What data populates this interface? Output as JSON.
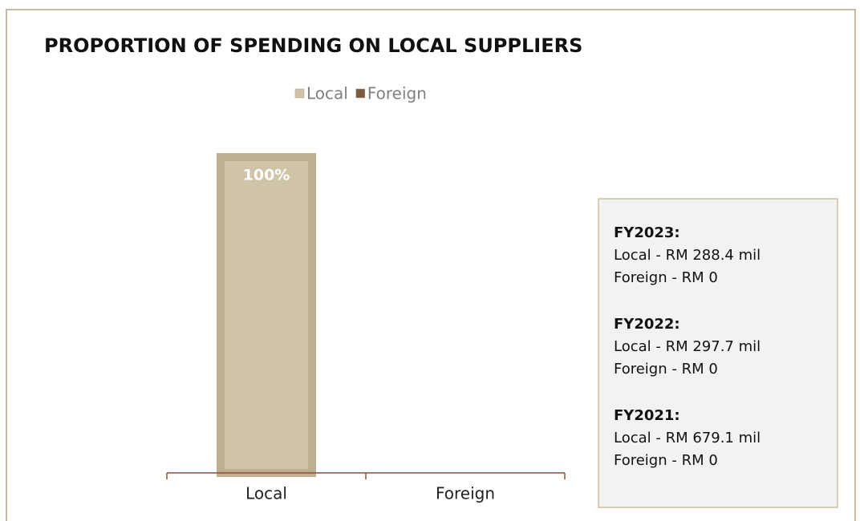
{
  "chart_data": {
    "type": "bar",
    "title": "PROPORTION OF SPENDING ON LOCAL SUPPLIERS",
    "categories": [
      "Local",
      "Foreign"
    ],
    "values": [
      100,
      0
    ],
    "value_labels": [
      "100%",
      null
    ],
    "colors": [
      "#cfc3a8",
      "#7b5a3f"
    ],
    "ylim": [
      0,
      100
    ],
    "legend": "top",
    "annotations": [
      {
        "heading": "FY2023:",
        "lines": [
          "Local - RM 288.4 mil",
          "Foreign - RM 0"
        ]
      },
      {
        "heading": "FY2022:",
        "lines": [
          "Local - RM 297.7 mil",
          "Foreign - RM 0"
        ]
      },
      {
        "heading": "FY2021:",
        "lines": [
          "Local - RM 679.1 mil",
          "Foreign - RM 0"
        ]
      }
    ]
  }
}
